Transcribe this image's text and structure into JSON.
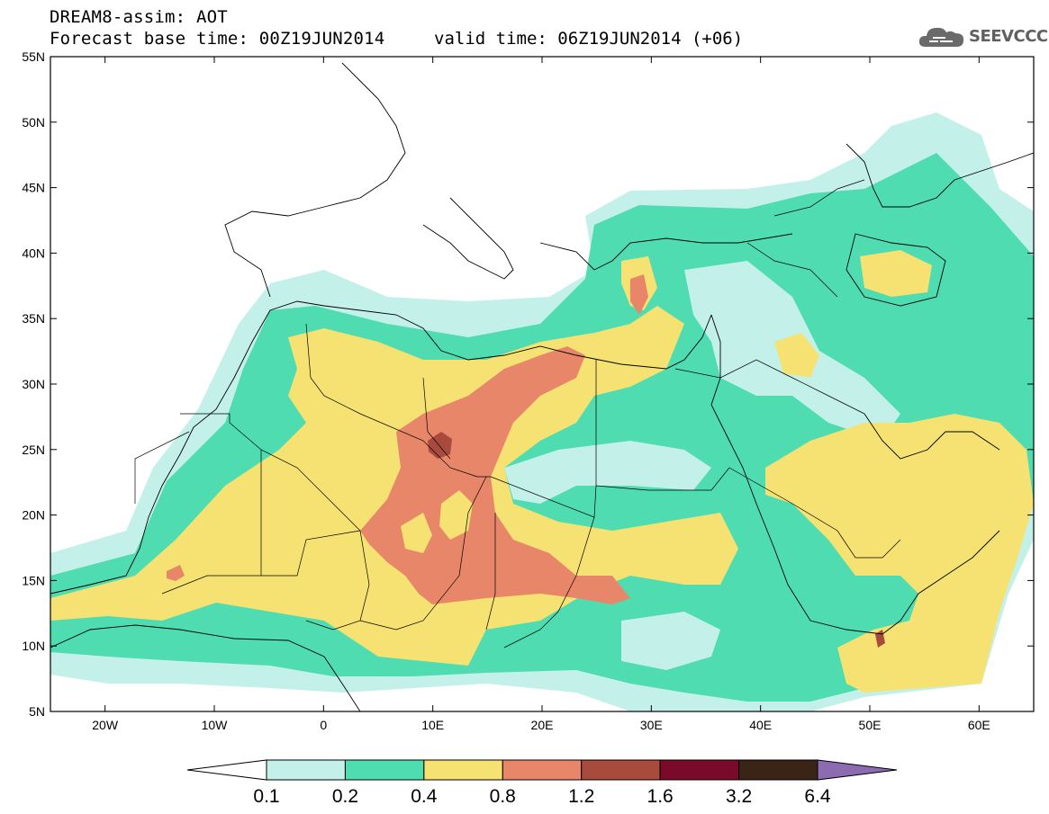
{
  "title": {
    "line1": "DREAM8-assim: AOT",
    "line2": "Forecast base time: 00Z19JUN2014",
    "valid": "valid time: 06Z19JUN2014 (+06)"
  },
  "logo": {
    "text": "SEEVCCC",
    "icon": "cloud-icon"
  },
  "map": {
    "lon_range": [
      -25,
      65
    ],
    "lat_range": [
      5,
      55
    ],
    "lat_ticks": [
      "55N",
      "50N",
      "45N",
      "40N",
      "35N",
      "30N",
      "25N",
      "20N",
      "15N",
      "10N",
      "5N"
    ],
    "lon_ticks": [
      "20W",
      "10W",
      "0",
      "10E",
      "20E",
      "30E",
      "40E",
      "50E",
      "60E"
    ]
  },
  "colorbar": {
    "labels": [
      "0.1",
      "0.2",
      "0.4",
      "0.8",
      "1.2",
      "1.6",
      "3.2",
      "6.4"
    ],
    "colors": [
      "#c4f0ea",
      "#4fdcb0",
      "#f6e272",
      "#e8866a",
      "#a84a3c",
      "#7a0a2a",
      "#3a2416",
      "#8d6bb0"
    ]
  }
}
